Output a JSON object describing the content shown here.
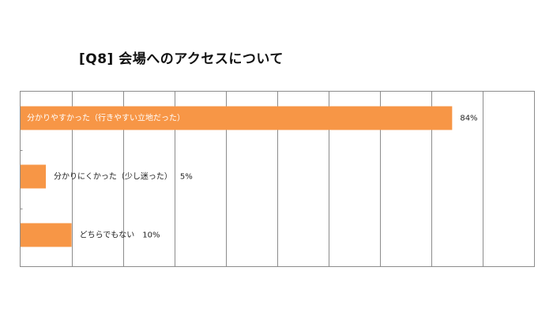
{
  "chart_data": {
    "type": "bar",
    "orientation": "horizontal",
    "title": "[Q8] 会場へのアクセスについて",
    "categories": [
      "分かりやすかった（行きやすい立地だった）",
      "分かりにくかった（少し迷った）",
      "どちらでもない"
    ],
    "values": [
      84,
      5,
      10
    ],
    "value_labels": [
      "84%",
      "5%",
      "10%"
    ],
    "xlim": [
      0,
      100
    ],
    "grid": true,
    "legend": "none",
    "bar_color": "#F79646",
    "grid_color": "#8C8C8C"
  }
}
